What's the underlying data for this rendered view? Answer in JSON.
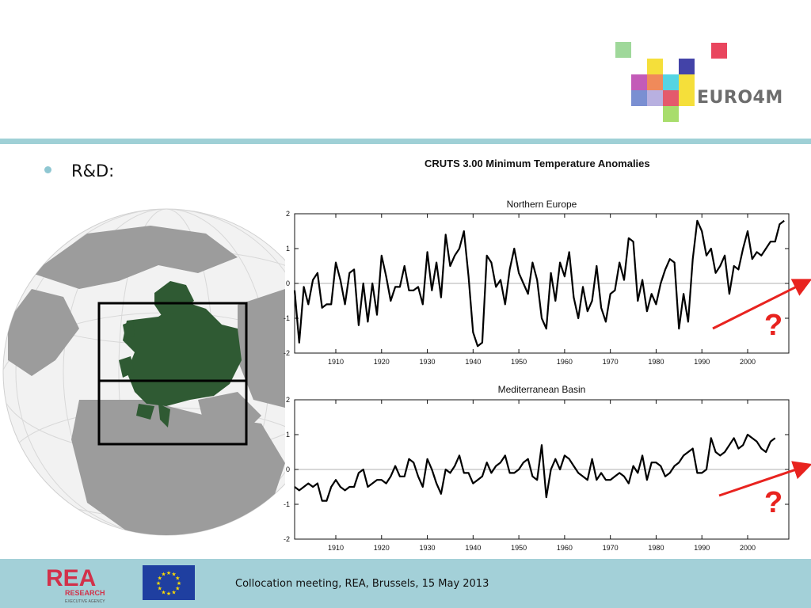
{
  "logo": {
    "text": "EURO4M"
  },
  "slide": {
    "bullet": "R&D:"
  },
  "chart": {
    "title": "CRUTS 3.00 Minimum Temperature Anomalies",
    "question_mark": "?"
  },
  "chart_data": [
    {
      "type": "line",
      "title": "Northern Europe",
      "xlim": [
        1901,
        2009
      ],
      "ylim": [
        -2,
        2
      ],
      "xticks": [
        1910,
        1920,
        1930,
        1940,
        1950,
        1960,
        1970,
        1980,
        1990,
        2000
      ],
      "yticks": [
        -2,
        -1,
        0,
        1,
        2
      ],
      "zero_line": true,
      "x_start": 1901,
      "values": [
        -0.2,
        -1.7,
        -0.1,
        -0.6,
        0.1,
        0.3,
        -0.7,
        -0.6,
        -0.6,
        0.6,
        0.1,
        -0.6,
        0.3,
        0.4,
        -1.2,
        0.0,
        -1.1,
        0.0,
        -0.9,
        0.8,
        0.2,
        -0.5,
        -0.1,
        -0.1,
        0.5,
        -0.2,
        -0.2,
        -0.1,
        -0.6,
        0.9,
        -0.2,
        0.6,
        -0.4,
        1.4,
        0.5,
        0.8,
        1.0,
        1.5,
        0.2,
        -1.4,
        -1.8,
        -1.7,
        0.8,
        0.6,
        -0.1,
        0.1,
        -0.6,
        0.4,
        1.0,
        0.3,
        0.0,
        -0.3,
        0.6,
        0.1,
        -1.0,
        -1.3,
        0.3,
        -0.5,
        0.6,
        0.2,
        0.9,
        -0.4,
        -1.0,
        -0.1,
        -0.8,
        -0.5,
        0.5,
        -0.7,
        -1.1,
        -0.3,
        -0.2,
        0.6,
        0.1,
        1.3,
        1.2,
        -0.5,
        0.1,
        -0.8,
        -0.3,
        -0.6,
        0.0,
        0.4,
        0.7,
        0.6,
        -1.3,
        -0.3,
        -1.1,
        0.7,
        1.8,
        1.5,
        0.8,
        1.0,
        0.3,
        0.5,
        0.8,
        -0.3,
        0.5,
        0.4,
        1.0,
        1.5,
        0.7,
        0.9,
        0.8,
        1.0,
        1.2,
        1.2,
        1.7,
        1.8
      ]
    },
    {
      "type": "line",
      "title": "Mediterranean Basin",
      "xlim": [
        1901,
        2009
      ],
      "ylim": [
        -2,
        2
      ],
      "xticks": [
        1910,
        1920,
        1930,
        1940,
        1950,
        1960,
        1970,
        1980,
        1990,
        2000
      ],
      "yticks": [
        -2,
        -1,
        0,
        1,
        2
      ],
      "zero_line": true,
      "x_start": 1901,
      "values": [
        -0.5,
        -0.6,
        -0.5,
        -0.4,
        -0.5,
        -0.4,
        -0.9,
        -0.9,
        -0.5,
        -0.3,
        -0.5,
        -0.6,
        -0.5,
        -0.5,
        -0.1,
        0.0,
        -0.5,
        -0.4,
        -0.3,
        -0.3,
        -0.4,
        -0.2,
        0.1,
        -0.2,
        -0.2,
        0.3,
        0.2,
        -0.2,
        -0.5,
        0.3,
        0.0,
        -0.4,
        -0.7,
        0.0,
        -0.1,
        0.1,
        0.4,
        -0.1,
        -0.1,
        -0.4,
        -0.3,
        -0.2,
        0.2,
        -0.1,
        0.1,
        0.2,
        0.4,
        -0.1,
        -0.1,
        0.0,
        0.2,
        0.3,
        -0.2,
        -0.3,
        0.7,
        -0.8,
        0.0,
        0.3,
        0.0,
        0.4,
        0.3,
        0.1,
        -0.1,
        -0.2,
        -0.3,
        0.3,
        -0.3,
        -0.1,
        -0.3,
        -0.3,
        -0.2,
        -0.1,
        -0.2,
        -0.4,
        0.1,
        -0.1,
        0.4,
        -0.3,
        0.2,
        0.2,
        0.1,
        -0.2,
        -0.1,
        0.1,
        0.2,
        0.4,
        0.5,
        0.6,
        -0.1,
        -0.1,
        0.0,
        0.9,
        0.5,
        0.4,
        0.5,
        0.7,
        0.9,
        0.6,
        0.7,
        1.0,
        0.9,
        0.8,
        0.6,
        0.5,
        0.8,
        0.9
      ]
    }
  ],
  "footer": {
    "text": "Collocation meeting, REA, Brussels, 15 May 2013",
    "rea_logo_text": "REA",
    "rea_logo_sub": "RESEARCH",
    "rea_logo_sub2": "EXECUTIVE AGENCY"
  },
  "colors": {
    "accent_rule": "#9fd0d6",
    "footer_bg": "#a3d0d8",
    "arrow_red": "#e8231f",
    "europe_green": "#2f5a33"
  }
}
